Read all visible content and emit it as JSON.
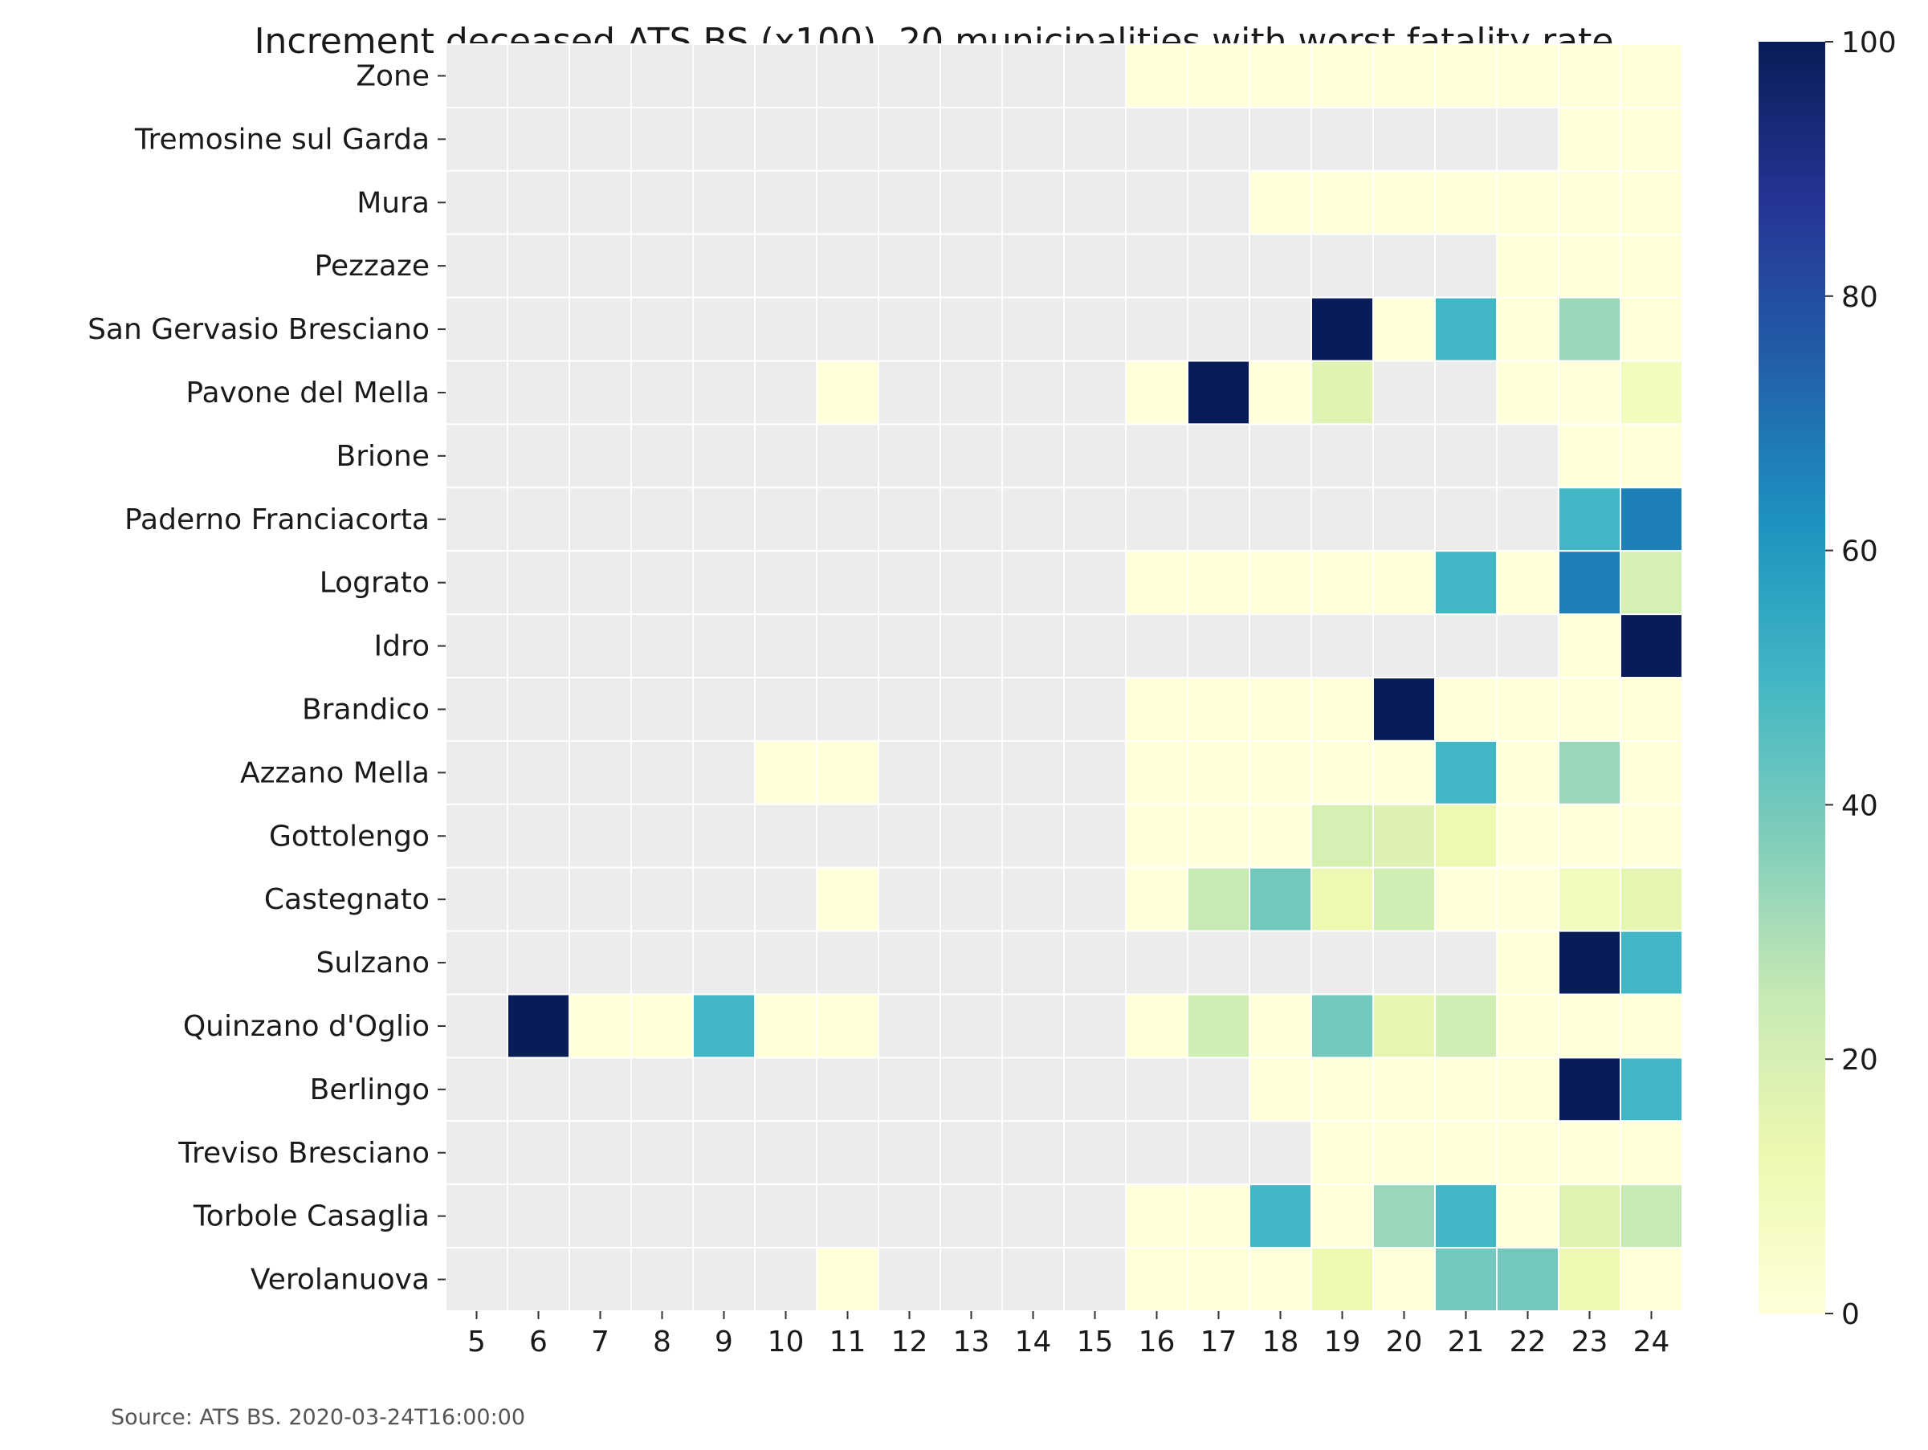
{
  "chart_data": {
    "type": "heatmap",
    "title": "Increment deceased ATS BS (x100). 20 municipalities with worst fatality rate.",
    "source": "Source: ATS BS. 2020-03-24T16:00:00",
    "x_categories": [
      "5",
      "6",
      "7",
      "8",
      "9",
      "10",
      "11",
      "12",
      "13",
      "14",
      "15",
      "16",
      "17",
      "18",
      "19",
      "20",
      "21",
      "22",
      "23",
      "24"
    ],
    "y_categories": [
      "Zone",
      "Tremosine sul Garda",
      "Mura",
      "Pezzaze",
      "San Gervasio Bresciano",
      "Pavone del Mella",
      "Brione",
      "Paderno Franciacorta",
      "Lograto",
      "Idro",
      "Brandico",
      "Azzano Mella",
      "Gottolengo",
      "Castegnato",
      "Sulzano",
      "Quinzano d'Oglio",
      "Berlingo",
      "Treviso Bresciano",
      "Torbole Casaglia",
      "Verolanuova"
    ],
    "values": [
      [
        null,
        null,
        null,
        null,
        null,
        null,
        null,
        null,
        null,
        null,
        null,
        0,
        0,
        0,
        0,
        0,
        0,
        0,
        0,
        0
      ],
      [
        null,
        null,
        null,
        null,
        null,
        null,
        null,
        null,
        null,
        null,
        null,
        null,
        null,
        null,
        null,
        null,
        null,
        null,
        0,
        0
      ],
      [
        null,
        null,
        null,
        null,
        null,
        null,
        null,
        null,
        null,
        null,
        null,
        null,
        null,
        0,
        0,
        0,
        0,
        0,
        0,
        0
      ],
      [
        null,
        null,
        null,
        null,
        null,
        null,
        null,
        null,
        null,
        null,
        null,
        null,
        null,
        null,
        null,
        null,
        null,
        0,
        0,
        0
      ],
      [
        null,
        null,
        null,
        null,
        null,
        null,
        null,
        null,
        null,
        null,
        null,
        null,
        null,
        null,
        100,
        0,
        50,
        0,
        33,
        0
      ],
      [
        null,
        null,
        null,
        null,
        null,
        null,
        0,
        null,
        null,
        null,
        null,
        0,
        100,
        0,
        17,
        null,
        null,
        0,
        0,
        8
      ],
      [
        null,
        null,
        null,
        null,
        null,
        null,
        null,
        null,
        null,
        null,
        null,
        null,
        null,
        null,
        null,
        null,
        null,
        null,
        0,
        0
      ],
      [
        null,
        null,
        null,
        null,
        null,
        null,
        null,
        null,
        null,
        null,
        null,
        null,
        null,
        null,
        null,
        null,
        null,
        null,
        50,
        67
      ],
      [
        null,
        null,
        null,
        null,
        null,
        null,
        null,
        null,
        null,
        null,
        null,
        0,
        0,
        0,
        0,
        0,
        50,
        0,
        67,
        20
      ],
      [
        null,
        null,
        null,
        null,
        null,
        null,
        null,
        null,
        null,
        null,
        null,
        null,
        null,
        null,
        null,
        null,
        null,
        null,
        0,
        100
      ],
      [
        null,
        null,
        null,
        null,
        null,
        null,
        null,
        null,
        null,
        null,
        null,
        0,
        0,
        0,
        0,
        100,
        0,
        0,
        0,
        0
      ],
      [
        null,
        null,
        null,
        null,
        null,
        0,
        0,
        null,
        null,
        null,
        null,
        0,
        0,
        0,
        0,
        0,
        50,
        0,
        33,
        0
      ],
      [
        null,
        null,
        null,
        null,
        null,
        null,
        null,
        null,
        null,
        null,
        null,
        0,
        0,
        0,
        20,
        18,
        12,
        0,
        0,
        0
      ],
      [
        null,
        null,
        null,
        null,
        null,
        null,
        0,
        null,
        null,
        null,
        null,
        0,
        25,
        40,
        12,
        22,
        0,
        0,
        8,
        15
      ],
      [
        null,
        null,
        null,
        null,
        null,
        null,
        null,
        null,
        null,
        null,
        null,
        null,
        null,
        null,
        null,
        null,
        null,
        0,
        100,
        50
      ],
      [
        null,
        100,
        0,
        0,
        50,
        0,
        0,
        null,
        null,
        null,
        null,
        0,
        22,
        0,
        40,
        15,
        22,
        0,
        0,
        0
      ],
      [
        null,
        null,
        null,
        null,
        null,
        null,
        null,
        null,
        null,
        null,
        null,
        null,
        null,
        0,
        0,
        0,
        0,
        0,
        100,
        50
      ],
      [
        null,
        null,
        null,
        null,
        null,
        null,
        null,
        null,
        null,
        null,
        null,
        null,
        null,
        null,
        0,
        0,
        0,
        0,
        0,
        0
      ],
      [
        null,
        null,
        null,
        null,
        null,
        null,
        null,
        null,
        null,
        null,
        null,
        0,
        0,
        50,
        0,
        33,
        50,
        0,
        17,
        25
      ],
      [
        null,
        null,
        null,
        null,
        null,
        null,
        0,
        null,
        null,
        null,
        null,
        0,
        0,
        0,
        12,
        0,
        40,
        40,
        12,
        0
      ]
    ],
    "missing_color": "#ececec",
    "colormap": "YlGnBu",
    "colorbar": {
      "min": 0,
      "max": 100,
      "ticks": [
        "0",
        "20",
        "40",
        "60",
        "80",
        "100"
      ]
    },
    "grid": "white cell borders"
  }
}
